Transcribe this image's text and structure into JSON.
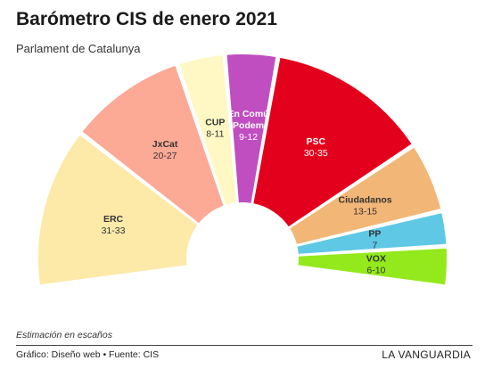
{
  "header": {
    "title": "Barómetro CIS de enero 2021",
    "subtitle": "Parlament de Catalunya"
  },
  "chart_data": {
    "type": "parliament-semicircle",
    "title": "Barómetro CIS de enero 2021",
    "subtitle": "Parlament de Catalunya",
    "unit_note": "Estimación en escaños",
    "parties": [
      {
        "name": "ERC",
        "range": "31-33",
        "min": 31,
        "max": 33,
        "color": "#fde9a8",
        "text_color": "#333333"
      },
      {
        "name": "JxCat",
        "range": "20-27",
        "min": 20,
        "max": 27,
        "color": "#fca996",
        "text_color": "#333333"
      },
      {
        "name": "CUP",
        "range": "8-11",
        "min": 8,
        "max": 11,
        "color": "#fff8c4",
        "text_color": "#333333"
      },
      {
        "name": "En Comú Podem",
        "range": "9-12",
        "min": 9,
        "max": 12,
        "color": "#c04ec0",
        "text_color": "#ffffff"
      },
      {
        "name": "PSC",
        "range": "30-35",
        "min": 30,
        "max": 35,
        "color": "#e3001c",
        "text_color": "#ffffff"
      },
      {
        "name": "Ciudadanos",
        "range": "13-15",
        "min": 13,
        "max": 15,
        "color": "#f2b676",
        "text_color": "#333333"
      },
      {
        "name": "PP",
        "range": "7",
        "min": 7,
        "max": 7,
        "color": "#5ec8e5",
        "text_color": "#333333"
      },
      {
        "name": "VOX",
        "range": "6-10",
        "min": 6,
        "max": 10,
        "color": "#93e91b",
        "text_color": "#333333"
      }
    ]
  },
  "footer": {
    "note": "Estimación en escaños",
    "credit": "Gráfico: Diseño web • Fuente: CIS",
    "brand": "LA VANGUARDIA"
  }
}
